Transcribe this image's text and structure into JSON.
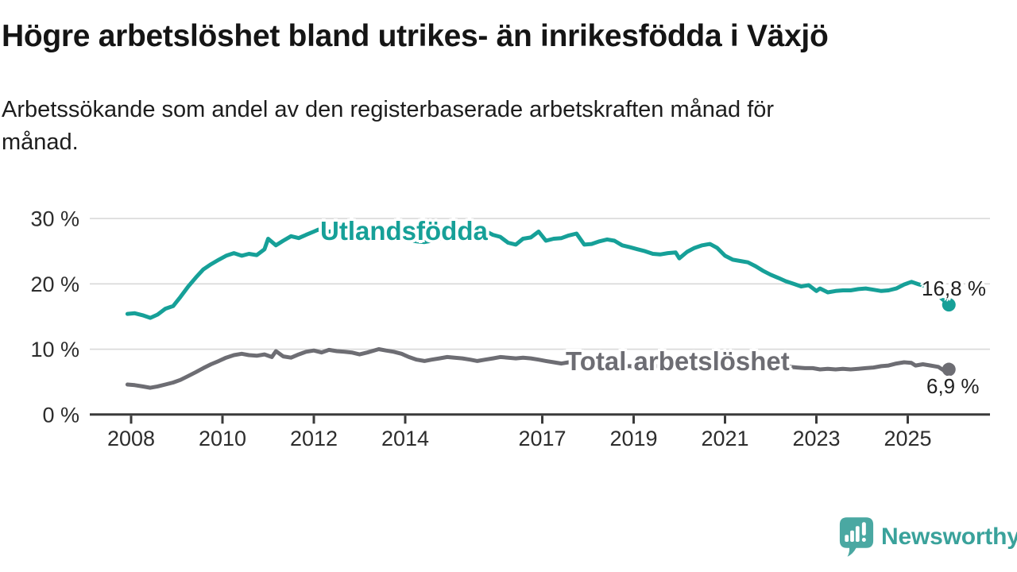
{
  "header": {
    "title": "Högre arbetslöshet bland utrikes- än inrikesfödda i Växjö",
    "subtitle_line1": "Arbetssökande som andel av den registerbaserade arbetskraften månad för",
    "subtitle_line2": "månad."
  },
  "footer": {
    "brand": "Newsworthy"
  },
  "colors": {
    "accent_teal": "#16a098",
    "series_gray": "#6d6d73",
    "gridline": "#d9d9d9",
    "axis": "#3a3a3a",
    "tick_text": "#2d2d2d",
    "logo_teal": "#3aa29b",
    "logo_icon": "#4aa8a2"
  },
  "chart_data": {
    "type": "line",
    "title": "Högre arbetslöshet bland utrikes- än inrikesfödda i Växjö",
    "subtitle": "Arbetssökande som andel av den registerbaserade arbetskraften månad för månad.",
    "unit": "%",
    "grid": "horizontal",
    "legend_position": "inline-labels",
    "x_range_years": [
      2007.1,
      2026.8
    ],
    "ylim": [
      0,
      32
    ],
    "x_tick_years": [
      2008,
      2010,
      2012,
      2014,
      2017,
      2019,
      2021,
      2023,
      2025
    ],
    "x_tick_labels": [
      "2008",
      "2010",
      "2012",
      "2014",
      "2017",
      "2019",
      "2021",
      "2023",
      "2025"
    ],
    "y_ticks": [
      {
        "value": 0,
        "label": "0 %"
      },
      {
        "value": 10,
        "label": "10 %"
      },
      {
        "value": 20,
        "label": "20 %"
      },
      {
        "value": 30,
        "label": "30 %"
      }
    ],
    "series": [
      {
        "name": "utlandsfodda",
        "label_text": "Utlandsfödda",
        "color": "#16a098",
        "end_label": "16,8 %",
        "end_value": 16.8,
        "points": [
          [
            2007.92,
            15.4
          ],
          [
            2008.08,
            15.5
          ],
          [
            2008.25,
            15.2
          ],
          [
            2008.42,
            14.8
          ],
          [
            2008.58,
            15.3
          ],
          [
            2008.75,
            16.2
          ],
          [
            2008.92,
            16.6
          ],
          [
            2009.08,
            18.0
          ],
          [
            2009.25,
            19.6
          ],
          [
            2009.42,
            21.0
          ],
          [
            2009.58,
            22.2
          ],
          [
            2009.75,
            23.0
          ],
          [
            2009.92,
            23.7
          ],
          [
            2010.08,
            24.3
          ],
          [
            2010.25,
            24.7
          ],
          [
            2010.42,
            24.3
          ],
          [
            2010.58,
            24.6
          ],
          [
            2010.75,
            24.4
          ],
          [
            2010.92,
            25.3
          ],
          [
            2011.0,
            26.9
          ],
          [
            2011.17,
            25.9
          ],
          [
            2011.33,
            26.6
          ],
          [
            2011.5,
            27.3
          ],
          [
            2011.67,
            27.0
          ],
          [
            2011.83,
            27.5
          ],
          [
            2012.0,
            28.0
          ],
          [
            2012.1,
            28.3
          ],
          [
            2012.25,
            27.9
          ],
          [
            2012.42,
            28.1
          ],
          [
            2012.58,
            27.8
          ],
          [
            2012.75,
            28.0
          ],
          [
            2012.92,
            27.8
          ],
          [
            2013.08,
            27.9
          ],
          [
            2013.25,
            27.6
          ],
          [
            2013.42,
            27.4
          ],
          [
            2013.58,
            27.2
          ],
          [
            2013.75,
            27.0
          ],
          [
            2013.92,
            26.8
          ],
          [
            2014.08,
            26.7
          ],
          [
            2014.25,
            26.5
          ],
          [
            2014.42,
            26.4
          ],
          [
            2014.58,
            26.6
          ],
          [
            2014.75,
            26.9
          ],
          [
            2014.92,
            27.1
          ],
          [
            2015.08,
            27.3
          ],
          [
            2015.25,
            27.5
          ],
          [
            2015.42,
            27.7
          ],
          [
            2015.58,
            27.9
          ],
          [
            2015.75,
            28.1
          ],
          [
            2015.92,
            27.5
          ],
          [
            2016.08,
            27.2
          ],
          [
            2016.25,
            26.3
          ],
          [
            2016.42,
            26.0
          ],
          [
            2016.58,
            26.9
          ],
          [
            2016.75,
            27.1
          ],
          [
            2016.92,
            28.0
          ],
          [
            2017.08,
            26.6
          ],
          [
            2017.25,
            26.9
          ],
          [
            2017.42,
            27.0
          ],
          [
            2017.58,
            27.4
          ],
          [
            2017.75,
            27.7
          ],
          [
            2017.92,
            26.0
          ],
          [
            2018.08,
            26.1
          ],
          [
            2018.25,
            26.5
          ],
          [
            2018.42,
            26.8
          ],
          [
            2018.58,
            26.6
          ],
          [
            2018.75,
            25.9
          ],
          [
            2018.92,
            25.6
          ],
          [
            2019.08,
            25.3
          ],
          [
            2019.25,
            25.0
          ],
          [
            2019.42,
            24.6
          ],
          [
            2019.58,
            24.5
          ],
          [
            2019.75,
            24.7
          ],
          [
            2019.92,
            24.8
          ],
          [
            2020.0,
            23.9
          ],
          [
            2020.17,
            24.9
          ],
          [
            2020.33,
            25.5
          ],
          [
            2020.5,
            25.9
          ],
          [
            2020.67,
            26.1
          ],
          [
            2020.83,
            25.5
          ],
          [
            2021.0,
            24.3
          ],
          [
            2021.17,
            23.7
          ],
          [
            2021.33,
            23.5
          ],
          [
            2021.5,
            23.3
          ],
          [
            2021.67,
            22.7
          ],
          [
            2021.83,
            22.0
          ],
          [
            2022.0,
            21.4
          ],
          [
            2022.17,
            20.9
          ],
          [
            2022.33,
            20.4
          ],
          [
            2022.5,
            20.0
          ],
          [
            2022.67,
            19.6
          ],
          [
            2022.83,
            19.8
          ],
          [
            2023.0,
            18.9
          ],
          [
            2023.08,
            19.3
          ],
          [
            2023.25,
            18.7
          ],
          [
            2023.42,
            18.9
          ],
          [
            2023.58,
            19.0
          ],
          [
            2023.75,
            19.0
          ],
          [
            2023.92,
            19.2
          ],
          [
            2024.08,
            19.3
          ],
          [
            2024.25,
            19.1
          ],
          [
            2024.42,
            18.9
          ],
          [
            2024.58,
            19.0
          ],
          [
            2024.75,
            19.3
          ],
          [
            2024.92,
            19.9
          ],
          [
            2025.08,
            20.3
          ],
          [
            2025.25,
            19.9
          ],
          [
            2025.42,
            19.6
          ],
          [
            2025.58,
            18.8
          ],
          [
            2025.75,
            17.7
          ],
          [
            2025.9,
            16.8
          ]
        ]
      },
      {
        "name": "total",
        "label_text": "Total arbetslöshet",
        "color": "#6d6d73",
        "end_label": "6,9 %",
        "end_value": 6.9,
        "points": [
          [
            2007.92,
            4.6
          ],
          [
            2008.08,
            4.5
          ],
          [
            2008.25,
            4.3
          ],
          [
            2008.42,
            4.1
          ],
          [
            2008.58,
            4.3
          ],
          [
            2008.75,
            4.6
          ],
          [
            2008.92,
            4.9
          ],
          [
            2009.08,
            5.3
          ],
          [
            2009.25,
            5.9
          ],
          [
            2009.42,
            6.5
          ],
          [
            2009.58,
            7.1
          ],
          [
            2009.75,
            7.7
          ],
          [
            2009.92,
            8.2
          ],
          [
            2010.08,
            8.7
          ],
          [
            2010.25,
            9.1
          ],
          [
            2010.42,
            9.3
          ],
          [
            2010.58,
            9.1
          ],
          [
            2010.75,
            9.0
          ],
          [
            2010.92,
            9.2
          ],
          [
            2011.08,
            8.8
          ],
          [
            2011.17,
            9.7
          ],
          [
            2011.33,
            8.9
          ],
          [
            2011.5,
            8.7
          ],
          [
            2011.67,
            9.2
          ],
          [
            2011.83,
            9.6
          ],
          [
            2012.0,
            9.8
          ],
          [
            2012.17,
            9.5
          ],
          [
            2012.33,
            9.9
          ],
          [
            2012.5,
            9.7
          ],
          [
            2012.67,
            9.6
          ],
          [
            2012.83,
            9.5
          ],
          [
            2013.0,
            9.2
          ],
          [
            2013.17,
            9.5
          ],
          [
            2013.42,
            10.0
          ],
          [
            2013.58,
            9.8
          ],
          [
            2013.75,
            9.6
          ],
          [
            2013.92,
            9.3
          ],
          [
            2014.08,
            8.8
          ],
          [
            2014.25,
            8.4
          ],
          [
            2014.42,
            8.2
          ],
          [
            2014.58,
            8.4
          ],
          [
            2014.75,
            8.6
          ],
          [
            2014.92,
            8.8
          ],
          [
            2015.08,
            8.7
          ],
          [
            2015.25,
            8.6
          ],
          [
            2015.42,
            8.4
          ],
          [
            2015.58,
            8.2
          ],
          [
            2015.75,
            8.4
          ],
          [
            2015.92,
            8.6
          ],
          [
            2016.08,
            8.8
          ],
          [
            2016.25,
            8.7
          ],
          [
            2016.42,
            8.6
          ],
          [
            2016.58,
            8.7
          ],
          [
            2016.75,
            8.6
          ],
          [
            2016.92,
            8.4
          ],
          [
            2017.08,
            8.2
          ],
          [
            2017.25,
            8.0
          ],
          [
            2017.42,
            7.8
          ],
          [
            2017.58,
            8.0
          ],
          [
            2017.75,
            7.9
          ],
          [
            2017.92,
            7.7
          ],
          [
            2018.08,
            7.8
          ],
          [
            2018.25,
            7.7
          ],
          [
            2018.42,
            7.6
          ],
          [
            2018.58,
            7.5
          ],
          [
            2018.75,
            7.4
          ],
          [
            2018.92,
            7.4
          ],
          [
            2019.08,
            7.3
          ],
          [
            2019.25,
            7.3
          ],
          [
            2019.42,
            7.4
          ],
          [
            2019.58,
            7.4
          ],
          [
            2019.75,
            7.5
          ],
          [
            2019.92,
            7.6
          ],
          [
            2020.08,
            8.1
          ],
          [
            2020.25,
            8.5
          ],
          [
            2020.42,
            8.6
          ],
          [
            2020.58,
            8.5
          ],
          [
            2020.75,
            8.4
          ],
          [
            2020.92,
            8.2
          ],
          [
            2021.08,
            8.1
          ],
          [
            2021.25,
            8.0
          ],
          [
            2021.42,
            7.9
          ],
          [
            2021.58,
            7.8
          ],
          [
            2021.75,
            7.7
          ],
          [
            2021.92,
            7.6
          ],
          [
            2022.08,
            7.5
          ],
          [
            2022.25,
            7.4
          ],
          [
            2022.42,
            7.3
          ],
          [
            2022.58,
            7.2
          ],
          [
            2022.75,
            7.1
          ],
          [
            2022.92,
            7.1
          ],
          [
            2023.08,
            6.9
          ],
          [
            2023.25,
            7.0
          ],
          [
            2023.42,
            6.9
          ],
          [
            2023.58,
            7.0
          ],
          [
            2023.75,
            6.9
          ],
          [
            2023.92,
            7.0
          ],
          [
            2024.08,
            7.1
          ],
          [
            2024.25,
            7.2
          ],
          [
            2024.42,
            7.4
          ],
          [
            2024.58,
            7.5
          ],
          [
            2024.75,
            7.8
          ],
          [
            2024.92,
            8.0
          ],
          [
            2025.08,
            7.9
          ],
          [
            2025.17,
            7.5
          ],
          [
            2025.33,
            7.7
          ],
          [
            2025.5,
            7.5
          ],
          [
            2025.67,
            7.3
          ],
          [
            2025.8,
            6.7
          ],
          [
            2025.9,
            6.9
          ]
        ]
      }
    ]
  }
}
